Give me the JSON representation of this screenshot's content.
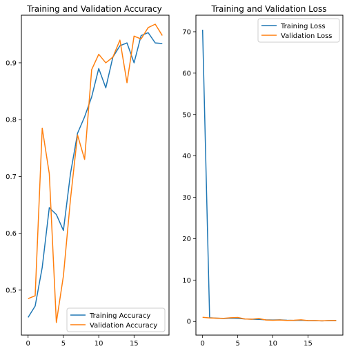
{
  "colors": {
    "training": "#1f77b4",
    "validation": "#ff7f0e"
  },
  "chart_data": [
    {
      "type": "line",
      "title": "Training and Validation Accuracy",
      "xlabel": "",
      "ylabel": "",
      "xlim": [
        -0.95,
        19.95
      ],
      "ylim": [
        0.4208,
        0.9838
      ],
      "xticks": [
        0,
        5,
        10,
        15
      ],
      "xtick_labels": [
        "0",
        "5",
        "10",
        "15"
      ],
      "yticks": [
        0.5,
        0.6,
        0.7,
        0.8,
        0.9
      ],
      "ytick_labels": [
        "0.5",
        "0.6",
        "0.7",
        "0.8",
        "0.9"
      ],
      "grid": false,
      "legend_position": "lower-right",
      "x": [
        0,
        1,
        2,
        3,
        4,
        5,
        6,
        7,
        8,
        9,
        10,
        11,
        12,
        13,
        14,
        15,
        16,
        17,
        18,
        19
      ],
      "series": [
        {
          "name": "Training Accuracy",
          "color_key": "training",
          "values": [
            0.452,
            0.472,
            0.54,
            0.645,
            0.633,
            0.605,
            0.705,
            0.776,
            0.805,
            0.84,
            0.89,
            0.856,
            0.91,
            0.93,
            0.935,
            0.9,
            0.948,
            0.953,
            0.935,
            0.934
          ]
        },
        {
          "name": "Validation Accuracy",
          "color_key": "validation",
          "values": [
            0.485,
            0.49,
            0.785,
            0.705,
            0.443,
            0.525,
            0.66,
            0.773,
            0.73,
            0.888,
            0.915,
            0.9,
            0.91,
            0.94,
            0.865,
            0.947,
            0.942,
            0.962,
            0.968,
            0.948
          ]
        }
      ]
    },
    {
      "type": "line",
      "title": "Training and Validation Loss",
      "xlabel": "",
      "ylabel": "",
      "xlim": [
        -0.95,
        19.95
      ],
      "ylim": [
        -3.3,
        74.0
      ],
      "xticks": [
        0,
        5,
        10,
        15
      ],
      "xtick_labels": [
        "0",
        "5",
        "10",
        "15"
      ],
      "yticks": [
        0,
        10,
        20,
        30,
        40,
        50,
        60,
        70
      ],
      "ytick_labels": [
        "0",
        "10",
        "20",
        "30",
        "40",
        "50",
        "60",
        "70"
      ],
      "grid": false,
      "legend_position": "upper-right",
      "x": [
        0,
        1,
        2,
        3,
        4,
        5,
        6,
        7,
        8,
        9,
        10,
        11,
        12,
        13,
        14,
        15,
        16,
        17,
        18,
        19
      ],
      "series": [
        {
          "name": "Training Loss",
          "color_key": "training",
          "values": [
            70.5,
            0.9,
            0.8,
            0.7,
            0.8,
            0.75,
            0.6,
            0.55,
            0.5,
            0.4,
            0.35,
            0.4,
            0.3,
            0.25,
            0.3,
            0.2,
            0.18,
            0.15,
            0.2,
            0.2
          ]
        },
        {
          "name": "Validation Loss",
          "color_key": "validation",
          "values": [
            1.0,
            0.85,
            0.8,
            0.75,
            0.9,
            0.95,
            0.6,
            0.55,
            0.7,
            0.35,
            0.3,
            0.35,
            0.25,
            0.3,
            0.4,
            0.2,
            0.2,
            0.15,
            0.2,
            0.25
          ]
        }
      ]
    }
  ]
}
